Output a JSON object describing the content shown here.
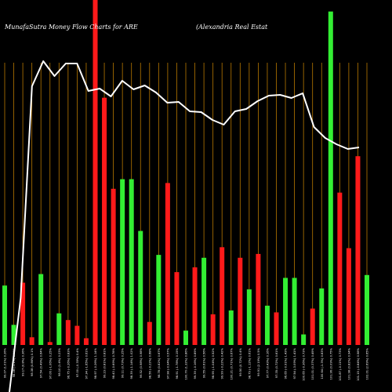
{
  "chart_data": {
    "type": "bar",
    "title": "MunafaSutra  Money Flow  Charts for ARE",
    "subtitle": "(Alexandria  Real Estat",
    "categories": [
      "Fri 07 Feb 2025",
      "Thu 06 Feb 2025",
      "Wed 05 Feb 2025",
      "Tue 04 Feb 2025",
      "Mon 03 Feb 2025",
      "Fri 31 Jan 2025",
      "Thu 30 Jan 2025",
      "Wed 29 Jan 2025",
      "Tue 28 Jan 2025",
      "Mon 27 Jan 2025",
      "Fri 24 Jan 2025",
      "Thu 23 Jan 2025",
      "Wed 22 Jan 2025",
      "Tue 21 Jan 2025",
      "Fri 17 Jan 2025",
      "Thu 16 Jan 2025",
      "Wed 15 Jan 2025",
      "Tue 14 Jan 2025",
      "Mon 13 Jan 2025",
      "Fri 10 Jan 2025",
      "Wed 08 Jan 2025",
      "Tue 07 Jan 2025",
      "Mon 06 Jan 2025",
      "Fri 03 Jan 2025",
      "Thu 02 Jan 2025",
      "Tue 31 Dec 2024",
      "Mon 30 Dec 2024",
      "Fri 27 Dec 2024",
      "Thu 26 Dec 2024",
      "Tue 24 Dec 2024",
      "Mon 23 Dec 2024",
      "Fri 20 Dec 2024",
      "Thu 19 Dec 2024",
      "Wed 18 Dec 2024",
      "Tue 17 Dec 2024",
      "Mon 16 Dec 2024",
      "Fri 13 Dec 2024",
      "Thu 12 Dec 2024",
      "Wed 11 Dec 2024",
      "Tue 10 Dec 2024",
      "Mon 09 Dec 2024"
    ],
    "tick_labels": [
      "99.07 (1.01%) 0.26%",
      "98.08 (-1.1%) 1.02%",
      "99.17 (0.8%) 0.36%",
      "98.38 (0.86%) 0.1%",
      "97.54 (0.49%) 0.64%",
      "97.06 (-1.06%) 0.25%",
      "98.10 (1.4%) 0.23%",
      "96.75 (-0.26%) 0.83%",
      "97.00 (-0.35%) 0.4%",
      "97.34 (-1.65%) 0.61%",
      "98.97 (-0.26%) 1.14%",
      "99.23 (0.81%) 0.81%",
      "98.43 (-0.69%) 0.78%",
      "99.11 (0.73%) 0.25%",
      "98.39 (-1.14%) 1.02%",
      "99.52 (0.98%) 0.98%",
      "98.56 (-0.22%) 0.68%",
      "98.78 (0.82%) 0.67%",
      "97.98 (-0.94%) 0.57%",
      "98.91 (-1.78%) 0.15%",
      "100.70 (1.32%) 0.86%",
      "99.39 (-0.16%) 0.89%",
      "99.55 (0.61%) 0.56%",
      "98.95 (-1.04%) 0.52%",
      "99.99 (-0.22%) 0.42%",
      "100.21 (0.71%) 0.67%",
      "99.50 (0.72%) 0.4%",
      "98.79 (-1.12%) 0.61%",
      "99.91 (2.19%) 0.5%",
      "97.77 (0.43%) 0.16%",
      "97.35 (0.72%) 0.61%",
      "96.65 (-0.91%) 1.43%",
      "97.54 (-3.09%) 1.41%",
      "100.65 (-0.36%) 0.73%",
      "101.01 (0.37%) 0.49%",
      "100.64 (-1.3%) 0.83%",
      "101.96 (0.09%) 0.75%",
      "101.87 (-0.11%) 0.73%",
      "101.98 (0.82%) 0.94%",
      "101.15 (-0.84%) 0.58%",
      "102.01 (2.69%) 0.65%"
    ],
    "bar_colors": [
      "green",
      "green",
      "red",
      "red",
      "green",
      "red",
      "green",
      "red",
      "red",
      "red",
      "red",
      "red",
      "red",
      "green",
      "green",
      "green",
      "red",
      "green",
      "red",
      "red",
      "green",
      "red",
      "green",
      "red",
      "red",
      "green",
      "red",
      "green",
      "red",
      "green",
      "red",
      "green",
      "green",
      "green",
      "red",
      "green",
      "green",
      "red",
      "red",
      "red",
      "green"
    ],
    "values": [
      62,
      21,
      65,
      8,
      74,
      3,
      33,
      26,
      20,
      7,
      360,
      258,
      163,
      173,
      173,
      119,
      24,
      94,
      169,
      76,
      15,
      81,
      91,
      32,
      102,
      36,
      91,
      58,
      95,
      41,
      34,
      70,
      70,
      11,
      38,
      59,
      348,
      159,
      101,
      197,
      73
    ],
    "line_y": [
      500,
      380,
      110,
      78,
      97,
      81,
      81,
      116,
      113,
      123,
      103,
      114,
      109,
      118,
      131,
      130,
      142,
      143,
      153,
      159,
      142,
      139,
      129,
      122,
      121,
      125,
      119,
      162,
      176,
      184,
      190,
      188
    ],
    "ylim": [
      0,
      360
    ],
    "grid": "vertical",
    "colors": {
      "background": "#000000",
      "up": "#33ee33",
      "down": "#ff1a1a",
      "grid": "#b87800",
      "line": "#ffffff"
    }
  }
}
